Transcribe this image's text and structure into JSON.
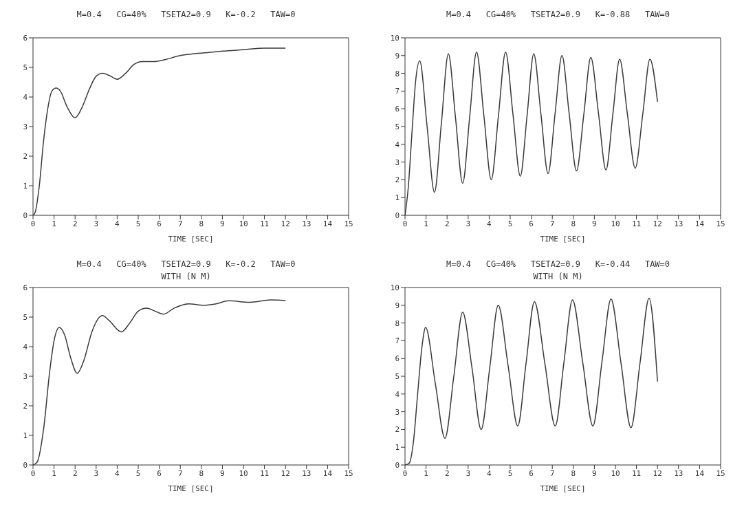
{
  "chart_data": [
    {
      "type": "line",
      "title": "M=0.4   CG=40%   TSETA2=0.9   K=-0.2   TAW=0",
      "xlabel": "TIME [SEC]",
      "xlim": [
        0,
        15
      ],
      "xticks": [
        0,
        1,
        2,
        3,
        4,
        5,
        6,
        7,
        8,
        9,
        10,
        11,
        12,
        13,
        14,
        15
      ],
      "ylim": [
        0,
        6
      ],
      "yticks": [
        0,
        1,
        2,
        3,
        4,
        5,
        6
      ],
      "x": [
        0,
        0.1,
        0.3,
        0.5,
        0.7,
        0.9,
        1.1,
        1.3,
        1.6,
        2.0,
        2.3,
        2.7,
        3.0,
        3.3,
        3.7,
        4.0,
        4.4,
        4.8,
        5.2,
        5.8,
        6.2,
        7.0,
        7.5,
        8.3,
        9.0,
        10.0,
        11.0,
        12.0
      ],
      "series": [
        {
          "color": "#3a3a3a",
          "values": [
            0,
            0.1,
            1,
            2.5,
            3.6,
            4.2,
            4.3,
            4.2,
            3.7,
            3.3,
            3.6,
            4.3,
            4.7,
            4.8,
            4.7,
            4.6,
            4.8,
            5.1,
            5.2,
            5.2,
            5.25,
            5.4,
            5.45,
            5.5,
            5.55,
            5.6,
            5.65,
            5.65
          ]
        }
      ]
    },
    {
      "type": "line",
      "title": "M=0.4   CG=40%   TSETA2=0.9   K=-0.88   TAW=0",
      "xlabel": "TIME [SEC]",
      "xlim": [
        0,
        15
      ],
      "xticks": [
        0,
        1,
        2,
        3,
        4,
        5,
        6,
        7,
        8,
        9,
        10,
        11,
        12,
        13,
        14,
        15
      ],
      "ylim": [
        0,
        10
      ],
      "yticks": [
        0,
        1,
        2,
        3,
        4,
        5,
        6,
        7,
        8,
        9,
        10
      ],
      "x": [
        0,
        0.15,
        0.35,
        0.5,
        0.7,
        1.05,
        1.4,
        1.73,
        2.06,
        2.4,
        2.74,
        3.07,
        3.4,
        3.75,
        4.1,
        4.44,
        4.78,
        5.13,
        5.48,
        5.8,
        6.12,
        6.46,
        6.8,
        7.13,
        7.46,
        7.8,
        8.15,
        8.5,
        8.83,
        9.2,
        9.55,
        9.88,
        10.2,
        10.57,
        10.94,
        11.3,
        11.64,
        12
      ],
      "series": [
        {
          "color": "#3a3a3a",
          "values": [
            0,
            1.5,
            5,
            7.5,
            8.7,
            5.0,
            1.3,
            5.2,
            9.1,
            5.5,
            1.8,
            5.5,
            9.2,
            5.6,
            2.0,
            5.6,
            9.2,
            5.7,
            2.2,
            5.6,
            9.1,
            5.7,
            2.35,
            5.7,
            9.0,
            5.75,
            2.5,
            5.7,
            8.9,
            5.7,
            2.55,
            5.7,
            8.8,
            5.7,
            2.65,
            5.7,
            8.8,
            6.4
          ]
        }
      ]
    },
    {
      "type": "line",
      "title": "M=0.4   CG=40%   TSETA2=0.9   K=-0.2   TAW=0",
      "subtitle": "WITH (N M)",
      "xlabel": "TIME [SEC]",
      "xlim": [
        0,
        15
      ],
      "xticks": [
        0,
        1,
        2,
        3,
        4,
        5,
        6,
        7,
        8,
        9,
        10,
        11,
        12,
        13,
        14,
        15
      ],
      "ylim": [
        0,
        6
      ],
      "yticks": [
        0,
        1,
        2,
        3,
        4,
        5,
        6
      ],
      "x": [
        0,
        0.2,
        0.5,
        0.8,
        1.0,
        1.25,
        1.5,
        1.8,
        2.1,
        2.4,
        2.8,
        3.1,
        3.3,
        3.6,
        4.2,
        4.6,
        5.0,
        5.4,
        5.8,
        6.2,
        6.7,
        7.4,
        8.1,
        8.7,
        9.3,
        10.3,
        11.3,
        12
      ],
      "series": [
        {
          "color": "#3a3a3a",
          "values": [
            0,
            0.1,
            1.2,
            3.2,
            4.2,
            4.65,
            4.4,
            3.6,
            3.1,
            3.5,
            4.5,
            4.95,
            5.05,
            4.9,
            4.5,
            4.8,
            5.2,
            5.3,
            5.2,
            5.1,
            5.3,
            5.45,
            5.4,
            5.45,
            5.55,
            5.5,
            5.58,
            5.56
          ]
        }
      ]
    },
    {
      "type": "line",
      "title": "M=0.4   CG=40%   TSETA2=0.9   K=-0.44   TAW=0",
      "subtitle": "WITH (N M)",
      "xlabel": "TIME [SEC]",
      "xlim": [
        0,
        15
      ],
      "xticks": [
        0,
        1,
        2,
        3,
        4,
        5,
        6,
        7,
        8,
        9,
        10,
        11,
        12,
        13,
        14,
        15
      ],
      "ylim": [
        0,
        10
      ],
      "yticks": [
        0,
        1,
        2,
        3,
        4,
        5,
        6,
        7,
        8,
        9,
        10
      ],
      "x": [
        0,
        0.2,
        0.4,
        0.6,
        0.8,
        0.98,
        1.44,
        1.9,
        2.32,
        2.74,
        3.18,
        3.62,
        4.03,
        4.43,
        4.9,
        5.36,
        5.75,
        6.15,
        6.65,
        7.14,
        7.55,
        7.96,
        8.45,
        8.93,
        9.36,
        9.79,
        10.27,
        10.74,
        11.17,
        11.6,
        12
      ],
      "series": [
        {
          "color": "#3a3a3a",
          "values": [
            0,
            0.1,
            1.3,
            4.0,
            6.6,
            7.75,
            4.6,
            1.5,
            5.0,
            8.6,
            5.5,
            2.0,
            5.5,
            9.0,
            5.6,
            2.2,
            5.7,
            9.2,
            5.7,
            2.2,
            5.75,
            9.3,
            5.75,
            2.2,
            5.8,
            9.35,
            5.7,
            2.1,
            5.75,
            9.4,
            4.7
          ]
        }
      ]
    }
  ]
}
